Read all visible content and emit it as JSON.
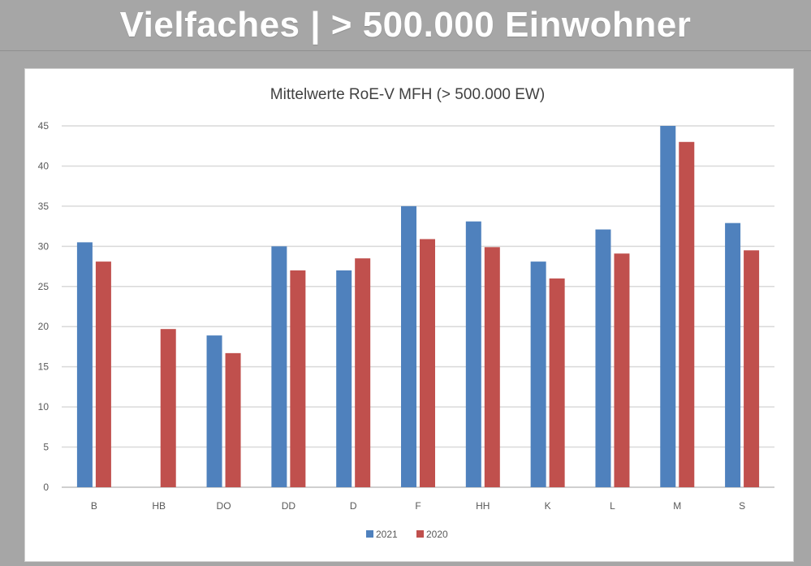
{
  "slide": {
    "title": "Vielfaches | > 500.000 Einwohner"
  },
  "colors": {
    "background": "#a6a6a6",
    "series_2021": "#4f81bd",
    "series_2020": "#c0504d",
    "gridline": "#d9d9d9"
  },
  "chart_data": {
    "type": "bar",
    "title": "Mittelwerte RoE-V  MFH (> 500.000 EW)",
    "xlabel": "",
    "ylabel": "",
    "categories": [
      "B",
      "HB",
      "DO",
      "DD",
      "D",
      "F",
      "HH",
      "K",
      "L",
      "M",
      "S"
    ],
    "series": [
      {
        "name": "2021",
        "color": "#4f81bd",
        "values": [
          30.5,
          null,
          18.9,
          30,
          27,
          35,
          33.1,
          28.1,
          32.1,
          45,
          32.9
        ]
      },
      {
        "name": "2020",
        "color": "#c0504d",
        "values": [
          28.1,
          19.7,
          16.7,
          27,
          28.5,
          30.9,
          29.9,
          26,
          29.1,
          43,
          29.5
        ]
      }
    ],
    "ylim": [
      0,
      45
    ],
    "yticks": [
      0,
      5,
      10,
      15,
      20,
      25,
      30,
      35,
      40,
      45
    ],
    "grid": true,
    "legend": "bottom"
  }
}
